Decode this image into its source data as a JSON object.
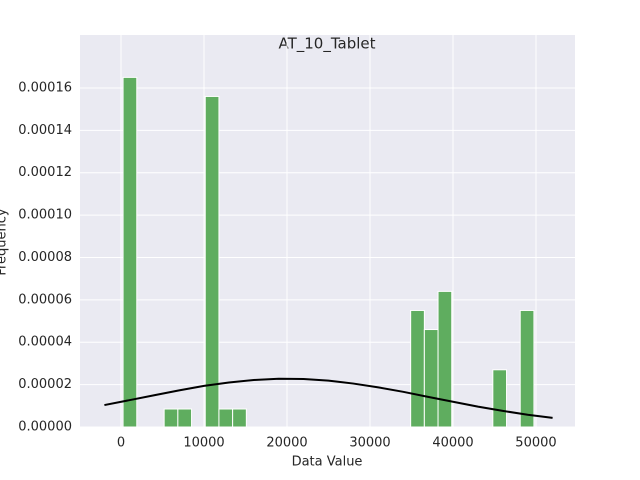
{
  "chart_data": {
    "type": "histogram",
    "title": "AT_10_Tablet",
    "xlabel": "Data Value",
    "ylabel": "Frequency",
    "bins": [
      250,
      1900,
      3550,
      5200,
      6850,
      8500,
      10150,
      11800,
      13450,
      15100,
      16750,
      18400,
      20050,
      21700,
      23350,
      25000,
      26650,
      28300,
      29950,
      31600,
      33250,
      34900,
      36550,
      38200,
      39850,
      41500,
      43150,
      44800,
      46450,
      48100,
      49750
    ],
    "counts": [
      0.000165,
      0,
      0,
      8.5e-06,
      8.5e-06,
      0,
      0.000156,
      8.5e-06,
      8.5e-06,
      0,
      0,
      0,
      0,
      0,
      0,
      0,
      0,
      0,
      0,
      0,
      0,
      5.5e-05,
      4.6e-05,
      6.4e-05,
      0,
      0,
      0,
      2.7e-05,
      0,
      5.5e-05
    ],
    "color": "#5fad5f",
    "curve": {
      "color": "#000000",
      "x": [
        -2000,
        1000,
        4000,
        7000,
        10000,
        13000,
        16000,
        19000,
        22000,
        25000,
        28000,
        31000,
        34000,
        37000,
        40000,
        43000,
        46000,
        49000,
        52000
      ],
      "y": [
        1.035e-05,
        1.265e-05,
        1.5e-05,
        1.73e-05,
        1.94e-05,
        2.1e-05,
        2.22e-05,
        2.276e-05,
        2.265e-05,
        2.19e-05,
        2.05e-05,
        1.87e-05,
        1.66e-05,
        1.42e-05,
        1.19e-05,
        9.6e-06,
        7.6e-06,
        5.8e-06,
        4.3e-06
      ]
    },
    "xlim": [
      -4940,
      54700
    ],
    "ylim": [
      0,
      0.000185
    ],
    "xticks": [
      0,
      10000,
      20000,
      30000,
      40000,
      50000
    ],
    "yticks": [
      {
        "value": 0,
        "label": "0.00000"
      },
      {
        "value": 2e-05,
        "label": "0.00002"
      },
      {
        "value": 4e-05,
        "label": "0.00004"
      },
      {
        "value": 6e-05,
        "label": "0.00006"
      },
      {
        "value": 8e-05,
        "label": "0.00008"
      },
      {
        "value": 0.0001,
        "label": "0.00010"
      },
      {
        "value": 0.00012,
        "label": "0.00012"
      },
      {
        "value": 0.00014,
        "label": "0.00014"
      },
      {
        "value": 0.00016,
        "label": "0.00016"
      }
    ],
    "grid": true
  }
}
